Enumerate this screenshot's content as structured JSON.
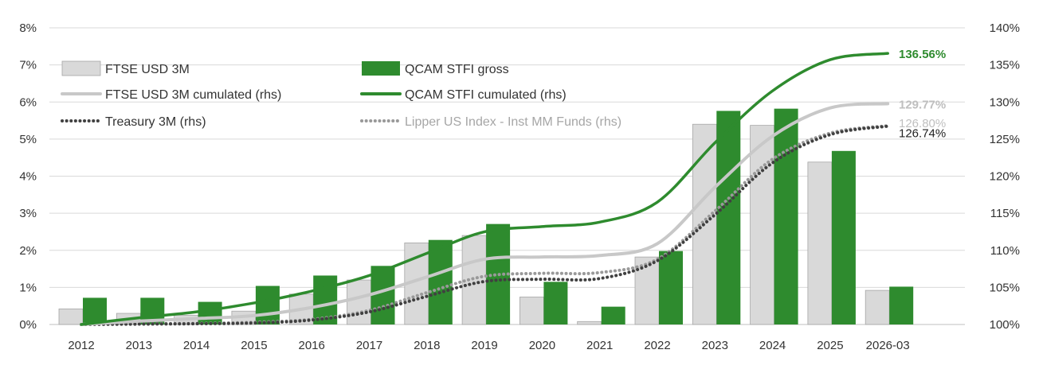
{
  "chart_data": {
    "type": "bar",
    "categories": [
      "2012",
      "2013",
      "2014",
      "2015",
      "2016",
      "2017",
      "2018",
      "2019",
      "2020",
      "2021",
      "2022",
      "2023",
      "2024",
      "2025",
      "2026-03"
    ],
    "left_axis": {
      "ylim": [
        0,
        8
      ],
      "ticks": [
        "0%",
        "1%",
        "2%",
        "3%",
        "4%",
        "5%",
        "6%",
        "7%",
        "8%"
      ]
    },
    "right_axis": {
      "ylim": [
        100,
        140
      ],
      "ticks": [
        "100%",
        "105%",
        "110%",
        "115%",
        "120%",
        "125%",
        "130%",
        "135%",
        "140%"
      ]
    },
    "grid": true,
    "legend_position": "top-left",
    "bar_series": [
      {
        "name": "FTSE USD 3M",
        "color": "#d9d9d9",
        "axis": "left",
        "values": [
          0.42,
          0.3,
          0.25,
          0.36,
          0.82,
          1.2,
          2.2,
          2.4,
          0.74,
          0.08,
          1.82,
          5.4,
          5.37,
          4.38,
          0.92
        ]
      },
      {
        "name": "QCAM STFI gross",
        "color": "#2e8b2e",
        "axis": "left",
        "values": [
          0.72,
          0.72,
          0.61,
          1.04,
          1.32,
          1.58,
          2.28,
          2.71,
          1.15,
          0.48,
          1.98,
          5.76,
          5.82,
          4.68,
          1.02
        ]
      }
    ],
    "line_series": [
      {
        "name": "FTSE USD 3M cumulated (rhs)",
        "color": "#c8c8c8",
        "style": "solid",
        "axis": "right",
        "values": [
          100.0,
          100.45,
          100.8,
          101.2,
          102.3,
          104.0,
          106.4,
          108.8,
          109.1,
          109.3,
          110.9,
          118.5,
          125.4,
          129.2,
          129.77
        ],
        "end_label": "129.77%"
      },
      {
        "name": "QCAM STFI cumulated (rhs)",
        "color": "#2e8b2e",
        "style": "solid",
        "axis": "right",
        "values": [
          100.0,
          100.9,
          101.7,
          102.9,
          104.5,
          106.6,
          109.6,
          112.5,
          113.2,
          113.8,
          116.5,
          124.5,
          131.5,
          135.7,
          136.56
        ],
        "end_label": "136.56%"
      },
      {
        "name": "Treasury 3M (rhs)",
        "color": "#404040",
        "style": "dotted",
        "axis": "right",
        "values": [
          100.0,
          100.05,
          100.1,
          100.2,
          100.6,
          101.7,
          103.8,
          105.8,
          106.1,
          106.2,
          108.6,
          114.8,
          121.8,
          125.6,
          126.74
        ],
        "end_label": "126.74%"
      },
      {
        "name": "Lipper US Index - Inst MM Funds (rhs)",
        "color": "#999999",
        "style": "dotted",
        "axis": "right",
        "values": [
          100.0,
          100.1,
          100.15,
          100.3,
          100.7,
          101.9,
          104.3,
          106.5,
          106.9,
          107.0,
          108.8,
          115.3,
          122.3,
          125.8,
          126.8
        ],
        "end_label": "126.80%"
      }
    ]
  }
}
